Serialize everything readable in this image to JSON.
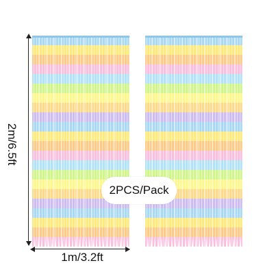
{
  "product": {
    "height_label": "2m/6.5ft",
    "width_label": "1m/3.2ft",
    "pack_label": "2PCS/Pack"
  },
  "colors": {
    "bands": [
      "#9fd3f0",
      "#fbe36b",
      "#ffc27a",
      "#f7b8d8",
      "#a9dcf5",
      "#c8f07a",
      "#fff07a",
      "#ffd27a",
      "#c7b6f0"
    ]
  }
}
